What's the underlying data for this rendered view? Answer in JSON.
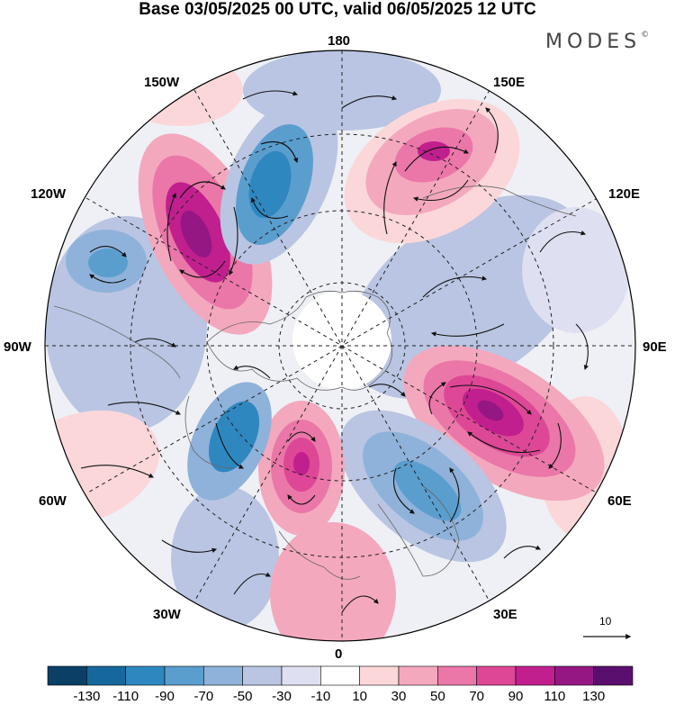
{
  "title": "Base 03/05/2025 00 UTC, valid 06/05/2025 12 UTC",
  "brand": {
    "text": "MODES",
    "mark": "©"
  },
  "longitudes": {
    "top": "180",
    "top_left": "150W",
    "top_right": "150E",
    "upper_left": "120W",
    "upper_right": "120E",
    "left": "90W",
    "right": "90E",
    "lower_left": "60W",
    "lower_right": "60E",
    "bottom_left": "30W",
    "bottom_right": "30E",
    "bottom": "0"
  },
  "reference_vector": {
    "label": "10"
  },
  "colorbar": {
    "labels": [
      "-130",
      "-110",
      "-90",
      "-70",
      "-50",
      "-30",
      "-10",
      "10",
      "30",
      "50",
      "70",
      "90",
      "110",
      "130"
    ],
    "colors": [
      "#0b3f66",
      "#16679c",
      "#2f87c0",
      "#5a9ece",
      "#8fb2da",
      "#b9c5e2",
      "#dedff0",
      "#ffffff",
      "#fbd7da",
      "#f4a8bd",
      "#ea77a8",
      "#de4796",
      "#c11f8e",
      "#951783",
      "#5a0f6f"
    ]
  },
  "map": {
    "anomaly_colors": {
      "neg1": "#dedff0",
      "neg2": "#b9c5e2",
      "neg3": "#8fb2da",
      "neg4": "#5a9ece",
      "neg5": "#2f87c0",
      "pos1": "#fbd7da",
      "pos2": "#f4a8bd",
      "pos3": "#ea77a8",
      "pos4": "#de4796",
      "pos5": "#c11f8e",
      "pos6": "#951783"
    }
  }
}
